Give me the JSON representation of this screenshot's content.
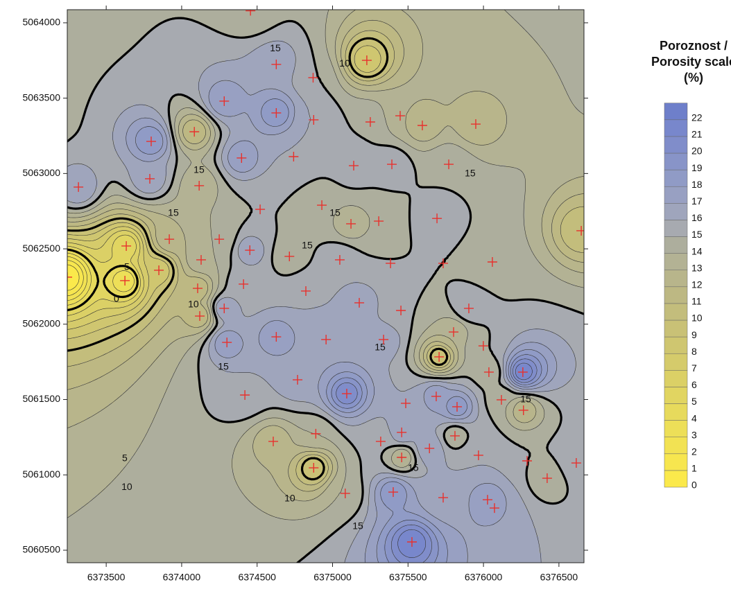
{
  "chart_data": {
    "type": "contour",
    "xlim": [
      6373242,
      6376666
    ],
    "ylim": [
      5060417,
      5064087
    ],
    "xticks": [
      6373500,
      6374000,
      6374500,
      6375000,
      6375500,
      6376000,
      6376500
    ],
    "yticks": [
      5060500,
      5061000,
      5061500,
      5062000,
      5062500,
      5063000,
      5063500,
      5064000
    ],
    "point_color": "#e8302c",
    "x": [
      6373316,
      6373798,
      6373789,
      6374084,
      6374116,
      6374456,
      6374282,
      6374627,
      6374627,
      6374397,
      6374742,
      6374871,
      6374875,
      6375227,
      6375250,
      6375448,
      6375595,
      6375949,
      6375393,
      6375140,
      6375770,
      6375692,
      6375306,
      6375122,
      6374929,
      6374520,
      6373918,
      6374249,
      6374452,
      6374714,
      6374129,
      6373633,
      6373849,
      6373624,
      6373242,
      6374410,
      6374106,
      6374823,
      6375048,
      6375384,
      6375733,
      6376059,
      6375177,
      6375453,
      6375903,
      6374282,
      6374120,
      6374300,
      6374627,
      6374957,
      6375338,
      6375802,
      6375706,
      6375999,
      6376036,
      6376261,
      6374768,
      6375094,
      6374419,
      6375485,
      6375687,
      6375825,
      6376119,
      6376265,
      6375811,
      6375458,
      6375642,
      6374889,
      6374607,
      6375319,
      6375458,
      6375967,
      6376289,
      6376615,
      6376422,
      6374875,
      6375084,
      6375402,
      6375733,
      6376027,
      6376073,
      6375526,
      6376648
    ],
    "y": [
      5062910,
      5063213,
      5062965,
      5063277,
      5062919,
      5064080,
      5063480,
      5063402,
      5063724,
      5063103,
      5063112,
      5063636,
      5063356,
      5063751,
      5063342,
      5063383,
      5063319,
      5063328,
      5063061,
      5063052,
      5063061,
      5062702,
      5062684,
      5062666,
      5062790,
      5062762,
      5062564,
      5062564,
      5062491,
      5062450,
      5062427,
      5062519,
      5062358,
      5062289,
      5062312,
      5062266,
      5062238,
      5062220,
      5062427,
      5062404,
      5062404,
      5062413,
      5062142,
      5062091,
      5062105,
      5062105,
      5062054,
      5061879,
      5061916,
      5061898,
      5061898,
      5061948,
      5061783,
      5061856,
      5061682,
      5061682,
      5061631,
      5061539,
      5061530,
      5061475,
      5061521,
      5061452,
      5061498,
      5061429,
      5061259,
      5061282,
      5061176,
      5061273,
      5061222,
      5061222,
      5061116,
      5061130,
      5061093,
      5061079,
      5060978,
      5061047,
      5060877,
      5060886,
      5060849,
      5060835,
      5060780,
      5060555,
      5062620
    ],
    "z": [
      17,
      19,
      17,
      11,
      13,
      14,
      18,
      19,
      17,
      18,
      16,
      15,
      16,
      8,
      15,
      13,
      12,
      12,
      16,
      16,
      15,
      16,
      14,
      13,
      14,
      15,
      13,
      14,
      17,
      14,
      14,
      5,
      8,
      3,
      0,
      16,
      11,
      16,
      16,
      15,
      15,
      14,
      17,
      15,
      16,
      17,
      11,
      18,
      18,
      17,
      17,
      13,
      9,
      15,
      14,
      22,
      17,
      21,
      16,
      16,
      18,
      19,
      14,
      12,
      14,
      17,
      17,
      14,
      12,
      15,
      13,
      16,
      15,
      16,
      14,
      9,
      14,
      19,
      16,
      18,
      17,
      22,
      10
    ],
    "contour_levels": [
      0,
      5,
      10,
      15
    ],
    "contour_labels": [
      {
        "value": 15,
        "x": 6374115,
        "y": 5063020
      },
      {
        "value": 15,
        "x": 6373945,
        "y": 5062735
      },
      {
        "value": 15,
        "x": 6374621,
        "y": 5063829
      },
      {
        "value": 10,
        "x": 6375080,
        "y": 5063728
      },
      {
        "value": 15,
        "x": 6375016,
        "y": 5062735
      },
      {
        "value": 15,
        "x": 6374832,
        "y": 5062519
      },
      {
        "value": 15,
        "x": 6375912,
        "y": 5062997
      },
      {
        "value": 0,
        "x": 6373568,
        "y": 5062165
      },
      {
        "value": 10,
        "x": 6374078,
        "y": 5062128
      },
      {
        "value": 5,
        "x": 6373637,
        "y": 5062376
      },
      {
        "value": 15,
        "x": 6374276,
        "y": 5061714
      },
      {
        "value": 15,
        "x": 6375315,
        "y": 5061843
      },
      {
        "value": 15,
        "x": 6376280,
        "y": 5061498
      },
      {
        "value": 5,
        "x": 6373623,
        "y": 5061107
      },
      {
        "value": 10,
        "x": 6373637,
        "y": 5060918
      },
      {
        "value": 10,
        "x": 6374717,
        "y": 5060840
      },
      {
        "value": 15,
        "x": 6375535,
        "y": 5061043
      },
      {
        "value": 15,
        "x": 6375168,
        "y": 5060656
      }
    ],
    "colorbar": {
      "title_lines": [
        "Poroznost /",
        "Porosity scale",
        "(%)"
      ],
      "ticks": [
        0,
        1,
        2,
        3,
        4,
        5,
        6,
        7,
        8,
        9,
        10,
        11,
        12,
        13,
        14,
        15,
        16,
        17,
        18,
        19,
        20,
        21,
        22
      ],
      "colors": [
        "#fbe94b",
        "#f7e64f",
        "#f2e253",
        "#eddf58",
        "#e7da5c",
        "#e1d561",
        "#dbd066",
        "#d5cb6b",
        "#cfc670",
        "#c9c176",
        "#c3bd7c",
        "#bdb883",
        "#b8b58b",
        "#b3b294",
        "#adae9d",
        "#a7aab0",
        "#9fa5bc",
        "#98a0c2",
        "#909bc6",
        "#8894c8",
        "#808dca",
        "#7887cc",
        "#6e7fca"
      ]
    }
  }
}
